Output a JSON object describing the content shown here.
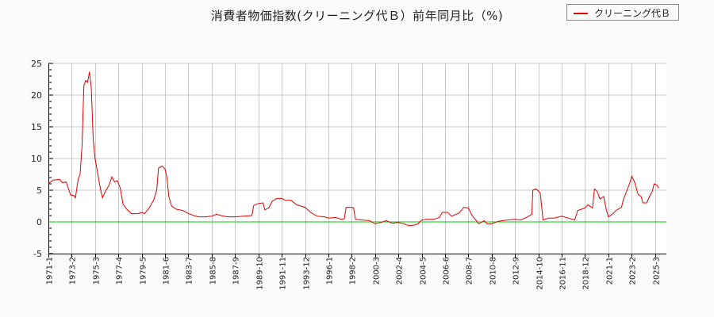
{
  "title": "消費者物価指数(クリーニング代Ｂ）前年同月比（%)",
  "legend": {
    "label": "クリーニング代Ｂ",
    "color": "#e00000"
  },
  "colors": {
    "series": "#e00000",
    "zero_line": "#00cc00",
    "grid": "#c8c8c8",
    "background": "#fafafa"
  },
  "chart_data": {
    "type": "line",
    "title": "消費者物価指数(クリーニング代Ｂ）前年同月比（%)",
    "xlabel": "",
    "ylabel": "",
    "ylim": [
      -5,
      25
    ],
    "yticks": [
      -5,
      0,
      5,
      10,
      15,
      20,
      25
    ],
    "grid": true,
    "legend_position": "top-right",
    "x_tick_labels": [
      "1971-1",
      "1973-2",
      "1975-3",
      "1977-4",
      "1979-5",
      "1981-6",
      "1983-7",
      "1985-8",
      "1987-9",
      "1989-10",
      "1991-11",
      "1993-12",
      "1996-1",
      "1998-2",
      "2000-3",
      "2002-4",
      "2004-5",
      "2006-6",
      "2008-7",
      "2010-8",
      "2012-9",
      "2014-10",
      "2016-11",
      "2018-12",
      "2021-1",
      "2023-2",
      "2025-3"
    ],
    "series": [
      {
        "name": "クリーニング代Ｂ",
        "points": [
          [
            "1971-1",
            6.0
          ],
          [
            "1971-6",
            6.6
          ],
          [
            "1972-1",
            6.7
          ],
          [
            "1972-4",
            6.2
          ],
          [
            "1972-8",
            6.3
          ],
          [
            "1972-11",
            5.0
          ],
          [
            "1973-1",
            4.2
          ],
          [
            "1973-4",
            4.2
          ],
          [
            "1973-6",
            3.8
          ],
          [
            "1973-9",
            6.8
          ],
          [
            "1973-11",
            7.5
          ],
          [
            "1974-1",
            12.0
          ],
          [
            "1974-3",
            21.5
          ],
          [
            "1974-5",
            22.3
          ],
          [
            "1974-7",
            22.0
          ],
          [
            "1974-9",
            23.7
          ],
          [
            "1974-11",
            21.0
          ],
          [
            "1975-1",
            13.0
          ],
          [
            "1975-3",
            10.0
          ],
          [
            "1975-6",
            7.5
          ],
          [
            "1975-9",
            5.0
          ],
          [
            "1975-11",
            3.8
          ],
          [
            "1976-2",
            4.8
          ],
          [
            "1976-6",
            5.8
          ],
          [
            "1976-9",
            7.1
          ],
          [
            "1976-12",
            6.3
          ],
          [
            "1977-3",
            6.5
          ],
          [
            "1977-6",
            5.3
          ],
          [
            "1977-9",
            2.8
          ],
          [
            "1978-1",
            2.0
          ],
          [
            "1978-6",
            1.3
          ],
          [
            "1979-1",
            1.3
          ],
          [
            "1979-5",
            1.5
          ],
          [
            "1979-8",
            1.3
          ],
          [
            "1980-1",
            2.2
          ],
          [
            "1980-6",
            3.5
          ],
          [
            "1980-9",
            5.0
          ],
          [
            "1980-11",
            8.5
          ],
          [
            "1981-3",
            8.8
          ],
          [
            "1981-6",
            8.3
          ],
          [
            "1981-8",
            7.0
          ],
          [
            "1981-10",
            4.0
          ],
          [
            "1982-1",
            2.5
          ],
          [
            "1982-6",
            2.0
          ],
          [
            "1983-1",
            1.8
          ],
          [
            "1983-7",
            1.3
          ],
          [
            "1984-1",
            1.0
          ],
          [
            "1984-6",
            0.8
          ],
          [
            "1985-1",
            0.8
          ],
          [
            "1985-8",
            0.9
          ],
          [
            "1986-1",
            1.2
          ],
          [
            "1986-6",
            1.0
          ],
          [
            "1987-1",
            0.8
          ],
          [
            "1987-9",
            0.8
          ],
          [
            "1988-6",
            0.9
          ],
          [
            "1989-3",
            1.0
          ],
          [
            "1989-5",
            2.6
          ],
          [
            "1989-10",
            2.9
          ],
          [
            "1990-3",
            3.0
          ],
          [
            "1990-5",
            1.9
          ],
          [
            "1990-9",
            2.2
          ],
          [
            "1991-1",
            3.3
          ],
          [
            "1991-6",
            3.7
          ],
          [
            "1991-11",
            3.7
          ],
          [
            "1992-3",
            3.4
          ],
          [
            "1992-9",
            3.4
          ],
          [
            "1993-3",
            2.7
          ],
          [
            "1993-12",
            2.3
          ],
          [
            "1994-6",
            1.5
          ],
          [
            "1995-1",
            0.9
          ],
          [
            "1995-9",
            0.8
          ],
          [
            "1996-1",
            0.6
          ],
          [
            "1996-9",
            0.7
          ],
          [
            "1997-3",
            0.4
          ],
          [
            "1997-6",
            0.5
          ],
          [
            "1997-8",
            2.3
          ],
          [
            "1998-2",
            2.3
          ],
          [
            "1998-4",
            2.2
          ],
          [
            "1998-6",
            0.4
          ],
          [
            "1999-1",
            0.3
          ],
          [
            "1999-9",
            0.2
          ],
          [
            "2000-3",
            -0.3
          ],
          [
            "2000-9",
            -0.1
          ],
          [
            "2001-3",
            0.2
          ],
          [
            "2001-9",
            -0.2
          ],
          [
            "2002-4",
            -0.1
          ],
          [
            "2002-10",
            -0.3
          ],
          [
            "2003-3",
            -0.6
          ],
          [
            "2003-9",
            -0.5
          ],
          [
            "2004-1",
            -0.3
          ],
          [
            "2004-5",
            0.3
          ],
          [
            "2004-10",
            0.4
          ],
          [
            "2005-6",
            0.4
          ],
          [
            "2005-12",
            0.7
          ],
          [
            "2006-3",
            1.5
          ],
          [
            "2006-9",
            1.5
          ],
          [
            "2007-1",
            0.9
          ],
          [
            "2007-9",
            1.4
          ],
          [
            "2008-2",
            2.3
          ],
          [
            "2008-7",
            2.2
          ],
          [
            "2008-11",
            1.0
          ],
          [
            "2009-3",
            0.3
          ],
          [
            "2009-6",
            -0.3
          ],
          [
            "2009-12",
            0.2
          ],
          [
            "2010-3",
            -0.3
          ],
          [
            "2010-8",
            -0.3
          ],
          [
            "2011-3",
            0.1
          ],
          [
            "2012-1",
            0.3
          ],
          [
            "2012-9",
            0.4
          ],
          [
            "2013-3",
            0.3
          ],
          [
            "2013-9",
            0.7
          ],
          [
            "2014-3",
            1.2
          ],
          [
            "2014-4",
            5.0
          ],
          [
            "2014-7",
            5.2
          ],
          [
            "2014-10",
            4.9
          ],
          [
            "2014-12",
            4.5
          ],
          [
            "2015-3",
            0.3
          ],
          [
            "2015-9",
            0.6
          ],
          [
            "2016-3",
            0.6
          ],
          [
            "2016-11",
            0.9
          ],
          [
            "2017-6",
            0.6
          ],
          [
            "2018-1",
            0.3
          ],
          [
            "2018-4",
            1.8
          ],
          [
            "2018-12",
            2.2
          ],
          [
            "2019-3",
            2.7
          ],
          [
            "2019-8",
            2.2
          ],
          [
            "2019-10",
            5.2
          ],
          [
            "2020-1",
            4.8
          ],
          [
            "2020-4",
            3.6
          ],
          [
            "2020-8",
            4.0
          ],
          [
            "2020-11",
            1.8
          ],
          [
            "2021-1",
            0.8
          ],
          [
            "2021-6",
            1.3
          ],
          [
            "2021-9",
            1.8
          ],
          [
            "2022-3",
            2.3
          ],
          [
            "2022-5",
            3.5
          ],
          [
            "2022-9",
            5.0
          ],
          [
            "2022-12",
            6.2
          ],
          [
            "2023-2",
            7.2
          ],
          [
            "2023-5",
            6.3
          ],
          [
            "2023-9",
            4.3
          ],
          [
            "2023-12",
            4.0
          ],
          [
            "2024-2",
            3.0
          ],
          [
            "2024-6",
            3.0
          ],
          [
            "2024-9",
            4.0
          ],
          [
            "2024-12",
            4.8
          ],
          [
            "2025-2",
            6.0
          ],
          [
            "2025-5",
            5.8
          ],
          [
            "2025-7",
            5.3
          ]
        ]
      }
    ]
  }
}
